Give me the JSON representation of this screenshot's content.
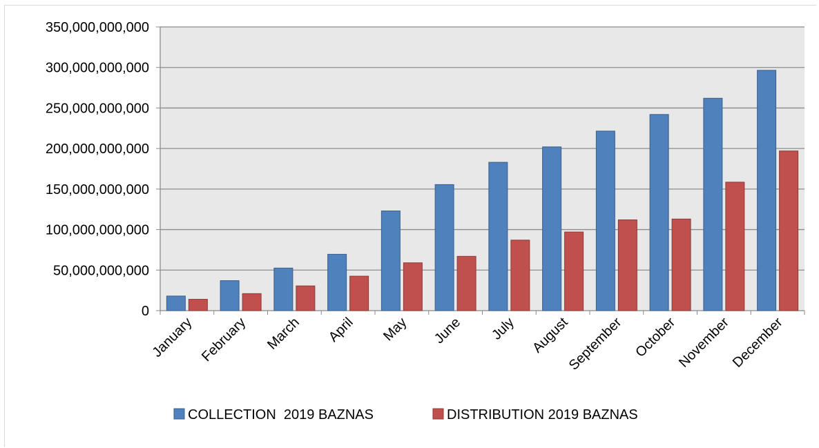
{
  "chart_data": {
    "type": "bar",
    "title": "",
    "xlabel": "",
    "ylabel": "",
    "categories": [
      "January",
      "February",
      "March",
      "April",
      "May",
      "June",
      "July",
      "August",
      "September",
      "October",
      "November",
      "December"
    ],
    "series": [
      {
        "name": "COLLECTION  2019 BAZNAS",
        "color": "#4f81bd",
        "values": [
          18000000000,
          37000000000,
          52500000000,
          69500000000,
          123000000000,
          155500000000,
          183000000000,
          202000000000,
          221500000000,
          242000000000,
          262000000000,
          296500000000
        ]
      },
      {
        "name": "DISTRIBUTION 2019 BAZNAS",
        "color": "#c0504d",
        "values": [
          14000000000,
          21000000000,
          30500000000,
          42500000000,
          59000000000,
          67000000000,
          87000000000,
          97000000000,
          112000000000,
          113000000000,
          158500000000,
          197000000000
        ]
      }
    ],
    "ylim": [
      0,
      350000000000
    ],
    "yticks": [
      0,
      50000000000,
      100000000000,
      150000000000,
      200000000000,
      250000000000,
      300000000000,
      350000000000
    ],
    "ytick_labels": [
      "0",
      "50,000,000,000",
      "100,000,000,000",
      "150,000,000,000",
      "200,000,000,000",
      "250,000,000,000",
      "300,000,000,000",
      "350,000,000,000"
    ],
    "grid": true,
    "plot_background": "#e8e8e8",
    "legend_position": "bottom"
  }
}
